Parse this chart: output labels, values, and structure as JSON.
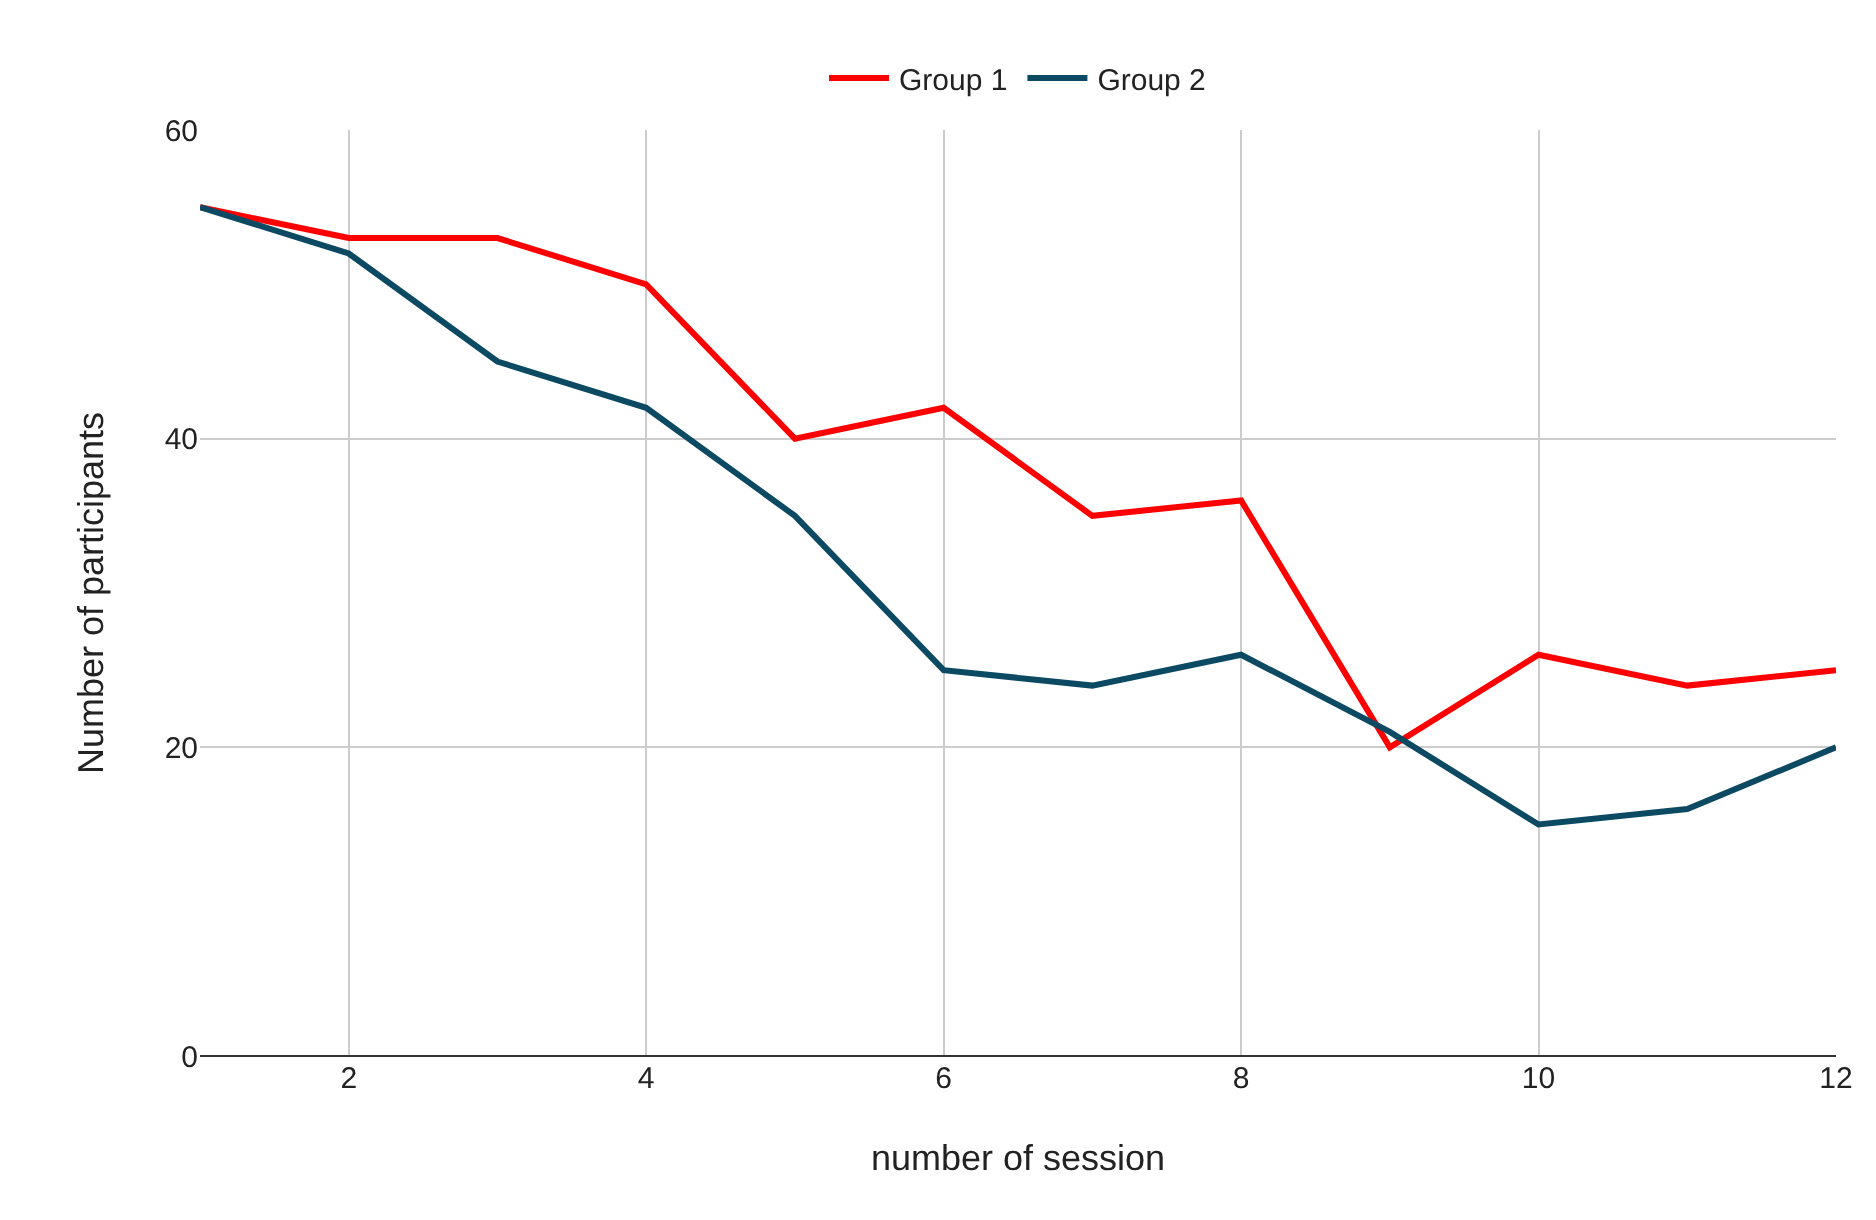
{
  "chart_data": {
    "type": "line",
    "xlabel": "number of session",
    "ylabel": "Number of participants",
    "x": [
      1,
      2,
      3,
      4,
      5,
      6,
      7,
      8,
      9,
      10,
      11,
      12
    ],
    "series": [
      {
        "name": "Group 1",
        "color": "#ff0000",
        "values": [
          55,
          53,
          53,
          50,
          40,
          42,
          35,
          36,
          20,
          26,
          24,
          25
        ]
      },
      {
        "name": "Group 2",
        "color": "#0b4a62",
        "values": [
          55,
          52,
          45,
          42,
          35,
          25,
          24,
          26,
          21,
          15,
          16,
          20
        ]
      }
    ],
    "xlim": [
      1,
      12
    ],
    "xticks": [
      2,
      4,
      6,
      8,
      10,
      12
    ],
    "ylim": [
      0,
      60
    ],
    "yticks": [
      0,
      20,
      40,
      60
    ],
    "grid": true,
    "legend": "top",
    "marker": "none",
    "line_style": "solid"
  }
}
